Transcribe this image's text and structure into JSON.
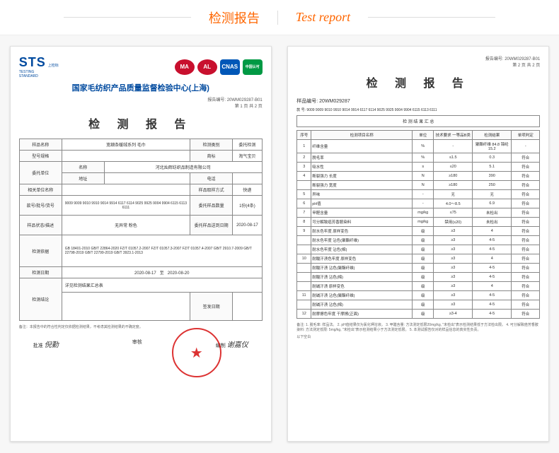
{
  "header": {
    "title_cn": "检测报告",
    "title_en": "Test report"
  },
  "page1": {
    "sts": "STS",
    "sts_cn": "上检标",
    "sts_en1": "TESTING",
    "sts_en2": "STANDARD",
    "badge1": "MA",
    "badge2": "AL",
    "badge3": "CNAS",
    "badge4": "中国认可",
    "center": "国家毛纺织产品质量监督检验中心(上海)",
    "report_no_lbl": "报告编号:",
    "report_no": "20WM029287-B01",
    "page_info": "第 1 页 共 2 页",
    "title": "检 测 报 告",
    "r1_lbl": "样品名称",
    "r1_val": "宽细条暖绒系列  毛巾",
    "r1b_lbl": "检测类别",
    "r1b_val": "委托检测",
    "r2_lbl": "型号规格",
    "r2b_lbl": "商标",
    "r2b_val": "淘气宝贝",
    "r3_lbl": "委托单位",
    "r3a_lbl": "名称",
    "r3a_val": "河北灿辉纺织品制造有限公司",
    "r3b_lbl": "地址",
    "r3c_lbl": "电话",
    "r4_lbl": "相关单位名称",
    "r4b_lbl": "样品取样方式",
    "r4b_val": "快递",
    "r5_lbl": "款号/批号/货号",
    "r5_val": "9009 9009 9010 9910 9014 9914 6117 6114 9025 9925 9004 9904 6115 6113 6111",
    "r5b_lbl": "委托样品数量",
    "r5b_val": "1份(4条)",
    "r6_lbl": "样品状态/描述",
    "r6_val": "无异常 粉色",
    "r6b_lbl": "委托样品送到日期",
    "r6b_val": "2020-08-17",
    "r7_lbl": "检测依据",
    "r7_val": "GB 18401-2010 GB/T 22864-2020 FZ/T 01057.2-2007 FZ/T 01057.3-2007 FZ/T 01057.4-2007 GB/T 2910.7-2009 GB/T 22798-2019 GB/T 22799-2019 GB/T 3923.1-2013",
    "r8_lbl": "检测日期",
    "r8_val1": "2020-08-17",
    "r8_to": "至",
    "r8_val2": "2020-08-20",
    "r9_lbl": "检测结论",
    "r9_val": "详见检测结果汇总表",
    "r10_lbl": "检测结论",
    "r10b_lbl": "签发日期",
    "footnote": "备注：本报告中的符合性判定仅依据检测结果，不考虑其检测结果的不确定度。",
    "sig1_lbl": "批准",
    "sig1": "倪勤",
    "sig2_lbl": "审核",
    "sig3_lbl": "编制",
    "sig3": "谢嘉仪",
    "stamp_text": "检 测 专 用 章"
  },
  "page2": {
    "report_no_lbl": "报告编号:",
    "report_no": "20WM029287-B01",
    "page_info": "第 2 页 共 2 页",
    "title": "检 测 报 告",
    "sample_lbl": "样品编号:",
    "sample_no": "20WM029287",
    "model_lbl": "款 号:",
    "model_val": "9009 9009 9010 9910 9014 9914 6117 6114 9025 9925 9004 9904 6115 6113 6111",
    "results_title": "检 测 结 果 汇 总",
    "th_no": "序号",
    "th_item": "检测项目名称",
    "th_unit": "单位",
    "th_req": "技术要求 一等品B类",
    "th_result": "检测结果",
    "th_judge": "单项判定",
    "rows": [
      {
        "n": "1",
        "item": "纤维含量",
        "unit": "%",
        "req": "-",
        "res": "聚酯纤维 84.8 锦纶 15.2",
        "j": "-"
      },
      {
        "n": "2",
        "item": "脱毛率",
        "unit": "%",
        "req": "≤1.5",
        "res": "0.3",
        "j": "符合"
      },
      {
        "n": "3",
        "item": "吸水性",
        "unit": "s",
        "req": "≤20",
        "res": "5.1",
        "j": "符合"
      },
      {
        "n": "4",
        "item": "断裂强力 长度",
        "unit": "N",
        "req": "≥180",
        "res": "390",
        "j": "符合"
      },
      {
        "n": "",
        "item": "断裂强力 宽度",
        "unit": "N",
        "req": "≥180",
        "res": "250",
        "j": "符合"
      },
      {
        "n": "5",
        "item": "异味",
        "unit": "-",
        "req": "无",
        "res": "无",
        "j": "符合"
      },
      {
        "n": "6",
        "item": "pH值",
        "unit": "-",
        "req": "4.0～8.5",
        "res": "6.9",
        "j": "符合"
      },
      {
        "n": "7",
        "item": "甲醛含量",
        "unit": "mg/kg",
        "req": "≤75",
        "res": "未检出",
        "j": "符合"
      },
      {
        "n": "8",
        "item": "可分解致癌芳香胺染料",
        "unit": "mg/kg",
        "req": "禁用(≤20)",
        "res": "未检出",
        "j": "符合"
      },
      {
        "n": "9",
        "item": "耐水色牢度 原样变色",
        "unit": "级",
        "req": "≥3",
        "res": "4",
        "j": "符合"
      },
      {
        "n": "",
        "item": "耐水色牢度 沾色(聚酯纤维)",
        "unit": "级",
        "req": "≥3",
        "res": "4-5",
        "j": "符合"
      },
      {
        "n": "",
        "item": "耐水色牢度 沾色(棉)",
        "unit": "级",
        "req": "≥3",
        "res": "4-5",
        "j": "符合"
      },
      {
        "n": "10",
        "item": "耐酸汗渍色牢度 原样变色",
        "unit": "级",
        "req": "≥3",
        "res": "4",
        "j": "符合"
      },
      {
        "n": "",
        "item": "耐酸汗渍 沾色(聚酯纤维)",
        "unit": "级",
        "req": "≥3",
        "res": "4-5",
        "j": "符合"
      },
      {
        "n": "",
        "item": "耐酸汗渍 沾色(棉)",
        "unit": "级",
        "req": "≥3",
        "res": "4-5",
        "j": "符合"
      },
      {
        "n": "",
        "item": "耐碱汗渍 原样变色",
        "unit": "级",
        "req": "≥3",
        "res": "4",
        "j": "符合"
      },
      {
        "n": "11",
        "item": "耐碱汗渍 沾色(聚酯纤维)",
        "unit": "级",
        "req": "≥3",
        "res": "4-5",
        "j": "符合"
      },
      {
        "n": "",
        "item": "耐碱汗渍 沾色(棉)",
        "unit": "级",
        "req": "≥3",
        "res": "4-5",
        "j": "符合"
      },
      {
        "n": "12",
        "item": "耐摩擦色牢度 干摩擦(正面)",
        "unit": "级",
        "req": "≥3-4",
        "res": "4-5",
        "j": "符合"
      }
    ],
    "note_title": "备注:",
    "note_body": "1. 脱毛率: 样品法。 2. pH值结果仅为氯化钾溶液。 3. 甲醛含量: 方法测定低限20mg/kg, \"未检出\"表示检测结果低于方法检出限。 4. 可分解致癌芳香胺染料: 方法测定低限: 5mg/kg, \"未检出\"表示检测结果小于方法测定低限。 5. 本测试报告仅对的样品信息的真实性负责。",
    "end": "以下空白"
  }
}
